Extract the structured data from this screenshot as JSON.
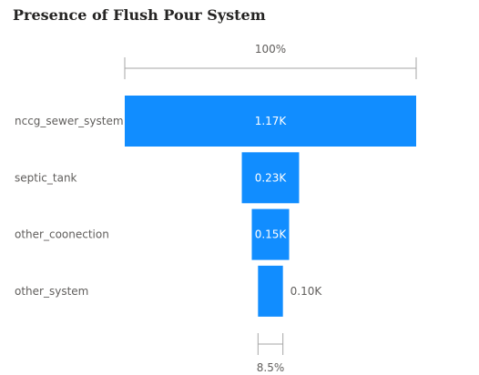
{
  "title": "Presence of Flush Pour System",
  "colors": {
    "bar": "#118dff",
    "axis": "#a6a6a6",
    "label_inside": "#ffffff",
    "label_outside": "#605e5c"
  },
  "chart_data": {
    "type": "bar",
    "subtype": "funnel",
    "categories": [
      "nccg_sewer_system",
      "septic_tank",
      "other_coonection",
      "other_system"
    ],
    "values": [
      1170,
      230,
      150,
      100
    ],
    "data_labels": [
      "1.17K",
      "0.23K",
      "0.15K",
      "0.10K"
    ],
    "top_percent_label": "100%",
    "bottom_percent_label": "8.5%"
  }
}
